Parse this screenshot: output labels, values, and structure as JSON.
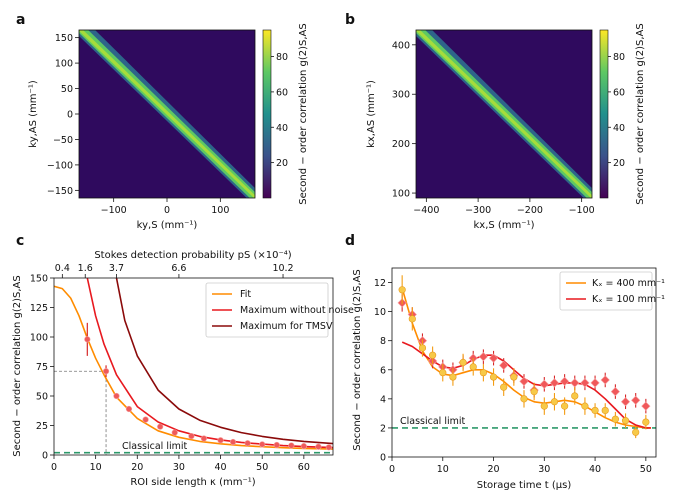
{
  "panels": {
    "a": "a",
    "b": "b",
    "c": "c",
    "d": "d"
  },
  "colorbar": {
    "ticks": [
      "20",
      "40",
      "60",
      "80"
    ],
    "label": "Second − order correlation g(2)S,AS",
    "colormap": [
      "#440154",
      "#3b528b",
      "#21908d",
      "#5dc863",
      "#fde725"
    ]
  },
  "chart_data": [
    {
      "id": "a",
      "type": "heatmap",
      "xlabel": "ky,S (mm⁻¹)",
      "ylabel": "ky,AS (mm⁻¹)",
      "xlim": [
        -165,
        165
      ],
      "ylim": [
        -165,
        165
      ],
      "xticks": [
        -100,
        0,
        100
      ],
      "yticks": [
        -150,
        -100,
        -50,
        0,
        50,
        100,
        150
      ],
      "xtick_labels": [
        "−100",
        "0",
        "100"
      ],
      "ytick_labels": [
        "−150",
        "−100",
        "−50",
        "0",
        "50",
        "100",
        "150"
      ],
      "diagonal": "anti-diagonal",
      "zlim": [
        0,
        95
      ]
    },
    {
      "id": "b",
      "type": "heatmap",
      "xlabel": "kx,S (mm⁻¹)",
      "ylabel": "kx,AS (mm⁻¹)",
      "xlim": [
        -420,
        -80
      ],
      "ylim": [
        90,
        430
      ],
      "xticks": [
        -400,
        -300,
        -200,
        -100
      ],
      "yticks": [
        100,
        200,
        300,
        400
      ],
      "xtick_labels": [
        "−400",
        "−300",
        "−200",
        "−100"
      ],
      "ytick_labels": [
        "100",
        "200",
        "300",
        "400"
      ],
      "diagonal": "anti-diagonal",
      "zlim": [
        0,
        95
      ]
    },
    {
      "id": "c",
      "type": "line",
      "xlabel": "ROI side length κ (mm⁻¹)",
      "ylabel": "Second − order correlation g(2)S,AS",
      "top_xlabel": "Stokes detection probability pS (×10⁻⁴)",
      "top_ticks": [
        {
          "label": "0.4",
          "kappa": 2
        },
        {
          "label": "1.6",
          "kappa": 7.5
        },
        {
          "label": "3.7",
          "kappa": 15
        },
        {
          "label": "6.6",
          "kappa": 30
        },
        {
          "label": "10.2",
          "kappa": 55
        }
      ],
      "xlim": [
        0,
        67
      ],
      "ylim": [
        0,
        150
      ],
      "xticks": [
        0,
        10,
        20,
        30,
        40,
        50,
        60
      ],
      "yticks": [
        0,
        25,
        50,
        75,
        100,
        125,
        150
      ],
      "legend": {
        "position": "upper-right",
        "entries": [
          "Fit",
          "Maximum without noise",
          "Maximum for TMSV"
        ]
      },
      "series": [
        {
          "name": "Fit",
          "color": "#ff8c00",
          "x": [
            0,
            2,
            4,
            6,
            8,
            10,
            12,
            15,
            20,
            25,
            30,
            35,
            40,
            45,
            50,
            55,
            60,
            67
          ],
          "y": [
            143,
            141,
            133,
            118,
            99,
            82,
            68,
            49,
            31,
            20.5,
            15,
            11.5,
            9.5,
            8,
            7,
            6.2,
            5.6,
            5
          ]
        },
        {
          "name": "Maximum without noise",
          "color": "#e8191f",
          "x": [
            8,
            10,
            12,
            15,
            20,
            25,
            30,
            35,
            40,
            45,
            50,
            55,
            60,
            67
          ],
          "y": [
            150,
            118,
            94,
            68,
            41,
            28,
            20.5,
            15.8,
            12.8,
            10.7,
            9.2,
            8,
            7.1,
            6.3
          ]
        },
        {
          "name": "Maximum for TMSV",
          "color": "#8b0a0a",
          "x": [
            15,
            17,
            20,
            25,
            30,
            35,
            40,
            45,
            50,
            55,
            60,
            67
          ],
          "y": [
            150,
            114,
            84,
            55,
            39,
            29.5,
            23.5,
            19,
            15.8,
            13.3,
            11.5,
            9.7
          ]
        },
        {
          "name": "data",
          "color": "#ef5a5a",
          "x": [
            8,
            12.5,
            15,
            18,
            22,
            25.5,
            29,
            33,
            36,
            40,
            43,
            46.5,
            50,
            53.5,
            57,
            60,
            63.5,
            66
          ],
          "y": [
            98,
            71,
            50,
            39,
            30,
            24,
            19,
            16,
            14,
            12.5,
            11,
            10,
            9,
            8.5,
            8,
            7.5,
            7,
            6.5
          ],
          "yerr": [
            14,
            5,
            2.5,
            2,
            1.5,
            1,
            1,
            1,
            1,
            1,
            1,
            1,
            1,
            1,
            1,
            1,
            1,
            1
          ]
        }
      ],
      "annotations": [
        {
          "text": "Classical limit",
          "y": 2
        },
        {
          "type": "guide",
          "x": 12.5,
          "y": 71
        }
      ]
    },
    {
      "id": "d",
      "type": "scatter",
      "xlabel": "Storage time t (μs)",
      "ylabel": "Second − order correlation g(2)S,AS",
      "xlim": [
        0,
        52
      ],
      "ylim": [
        0,
        13
      ],
      "xticks": [
        0,
        10,
        20,
        30,
        40,
        50
      ],
      "yticks": [
        0,
        2,
        4,
        6,
        8,
        10,
        12
      ],
      "legend": {
        "position": "upper-right",
        "entries": [
          "Kₓ = 400 mm⁻¹",
          "Kₓ = 100 mm⁻¹"
        ]
      },
      "series": [
        {
          "name": "Kₓ = 400 mm⁻¹",
          "color": "#ff8c00",
          "marker": "circle",
          "x": [
            2,
            4,
            6,
            8,
            10,
            12,
            14,
            16,
            18,
            20,
            22,
            24,
            26,
            28,
            30,
            32,
            34,
            36,
            38,
            40,
            42,
            44,
            46,
            48,
            50
          ],
          "y": [
            11.5,
            9.5,
            7.5,
            7,
            5.8,
            5.5,
            6.5,
            6.2,
            5.8,
            5.5,
            4.8,
            5.5,
            4,
            4.5,
            3.5,
            3.8,
            3.5,
            4.2,
            3.5,
            3.2,
            3.2,
            2.6,
            2.5,
            1.7,
            2.4
          ],
          "yerr": [
            1,
            0.8,
            0.6,
            0.6,
            0.6,
            0.6,
            0.6,
            0.6,
            0.6,
            0.6,
            0.6,
            0.6,
            0.6,
            0.6,
            0.6,
            0.6,
            0.6,
            0.6,
            0.6,
            0.5,
            0.5,
            0.5,
            0.5,
            0.4,
            0.5
          ]
        },
        {
          "name": "Kₓ = 100 mm⁻¹",
          "color": "#f0585a",
          "marker": "diamond",
          "x": [
            2,
            4,
            6,
            8,
            10,
            12,
            14,
            16,
            18,
            20,
            22,
            24,
            26,
            28,
            30,
            32,
            34,
            36,
            38,
            40,
            42,
            44,
            46,
            48,
            50
          ],
          "y": [
            10.6,
            9.8,
            8,
            6.6,
            6.2,
            6,
            6.5,
            6.8,
            6.9,
            6.8,
            6.3,
            5.6,
            5.2,
            4.6,
            5,
            5.1,
            5.2,
            5.1,
            5.1,
            5.1,
            5.3,
            4.5,
            3.8,
            3.9,
            3.5
          ],
          "yerr": [
            0.6,
            0.5,
            0.5,
            0.5,
            0.5,
            0.5,
            0.5,
            0.5,
            0.5,
            0.5,
            0.5,
            0.5,
            0.5,
            0.5,
            0.5,
            0.5,
            0.5,
            0.5,
            0.5,
            0.5,
            0.5,
            0.5,
            0.5,
            0.5,
            0.5
          ]
        },
        {
          "name": "fit 400",
          "color": "#ff8c00",
          "line": true,
          "x": [
            2,
            4,
            6,
            8,
            10,
            12,
            14,
            16,
            18,
            20,
            22,
            24,
            26,
            28,
            30,
            32,
            34,
            36,
            38,
            40,
            42,
            44,
            46,
            48,
            50,
            51
          ],
          "y": [
            11.6,
            9.2,
            7.3,
            6.2,
            5.7,
            5.6,
            5.8,
            6.0,
            6.0,
            5.7,
            5.2,
            4.6,
            4.1,
            3.8,
            3.7,
            3.8,
            3.9,
            3.8,
            3.5,
            3.1,
            2.7,
            2.4,
            2.2,
            2.1,
            2.0,
            2.0
          ]
        },
        {
          "name": "fit 100",
          "color": "#e8191f",
          "line": true,
          "x": [
            2,
            4,
            6,
            8,
            10,
            12,
            14,
            16,
            18,
            20,
            22,
            24,
            26,
            28,
            30,
            32,
            34,
            36,
            38,
            40,
            42,
            44,
            46,
            48,
            50,
            51
          ],
          "y": [
            7.9,
            7.6,
            7.1,
            6.6,
            6.2,
            6.1,
            6.3,
            6.7,
            7.0,
            7.0,
            6.6,
            6.0,
            5.4,
            5.0,
            4.9,
            5.0,
            5.1,
            5.1,
            5.0,
            4.6,
            4.0,
            3.3,
            2.6,
            2.2,
            2.0,
            2.0
          ]
        }
      ],
      "annotations": [
        {
          "text": "Classical limit",
          "y": 2
        }
      ]
    }
  ]
}
